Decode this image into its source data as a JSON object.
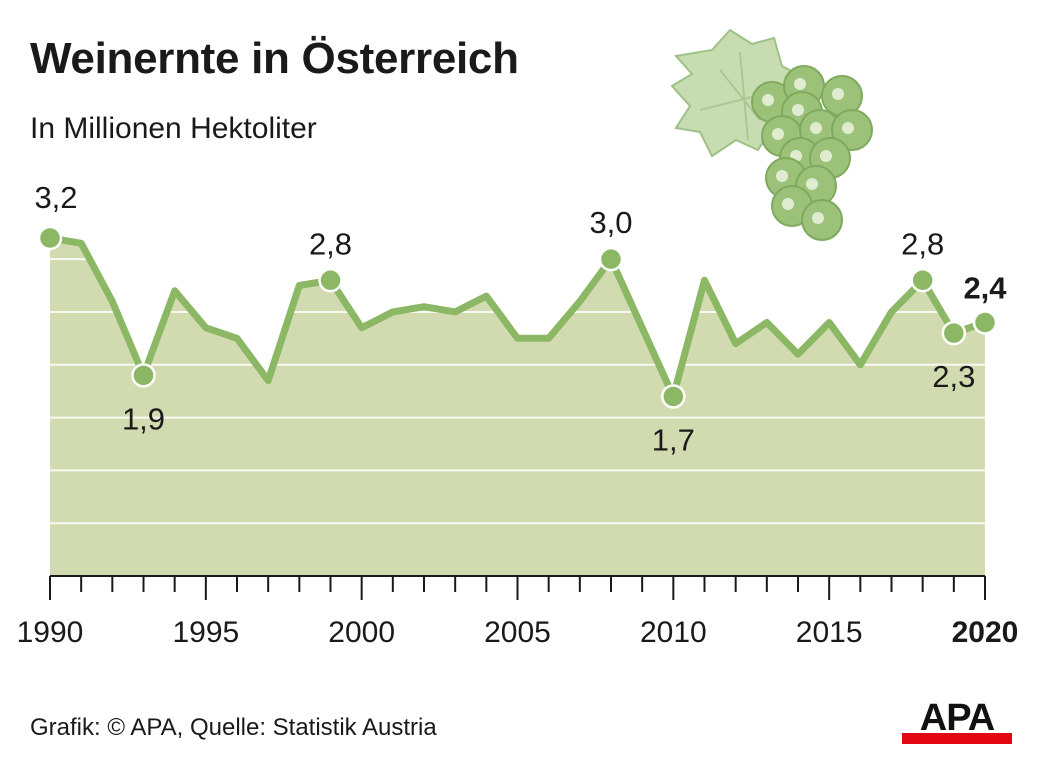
{
  "header": {
    "title": "Weinernte in Österreich",
    "subtitle": "In Millionen Hektoliter"
  },
  "footer": {
    "source": "Grafik: © APA, Quelle: Statistik Austria"
  },
  "logo": {
    "text": "APA"
  },
  "colors": {
    "area": "#d2dbaf",
    "line": "#8cb865",
    "grid": "#ffffff",
    "axis": "#1a1a1a",
    "logo_bar": "#e30613",
    "grape": "#9cc279",
    "leaf": "#c7ddb1"
  },
  "decoration": {
    "icon": "grape-cluster-icon"
  },
  "chart_data": {
    "type": "area",
    "x": [
      1990,
      1991,
      1992,
      1993,
      1994,
      1995,
      1996,
      1997,
      1998,
      1999,
      2000,
      2001,
      2002,
      2003,
      2004,
      2005,
      2006,
      2007,
      2008,
      2009,
      2010,
      2011,
      2012,
      2013,
      2014,
      2015,
      2016,
      2017,
      2018,
      2019,
      2020
    ],
    "values": [
      3.2,
      3.15,
      2.6,
      1.9,
      2.7,
      2.35,
      2.25,
      1.85,
      2.75,
      2.8,
      2.35,
      2.5,
      2.55,
      2.5,
      2.65,
      2.25,
      2.25,
      2.6,
      3.0,
      2.35,
      1.7,
      2.8,
      2.2,
      2.4,
      2.1,
      2.4,
      2.0,
      2.5,
      2.8,
      2.3,
      2.4
    ],
    "ylim": [
      0,
      3.2
    ],
    "xlim": [
      1990,
      2020
    ],
    "xticks": [
      "1990",
      "1995",
      "2000",
      "2005",
      "2010",
      "2015",
      "2020"
    ],
    "grid": true,
    "annotations": [
      {
        "year": 1990,
        "label": "3,2",
        "pos": "above"
      },
      {
        "year": 1993,
        "label": "1,9",
        "pos": "below"
      },
      {
        "year": 1999,
        "label": "2,8",
        "pos": "above"
      },
      {
        "year": 2008,
        "label": "3,0",
        "pos": "above"
      },
      {
        "year": 2010,
        "label": "1,7",
        "pos": "below"
      },
      {
        "year": 2018,
        "label": "2,8",
        "pos": "above"
      },
      {
        "year": 2019,
        "label": "2,3",
        "pos": "below"
      },
      {
        "year": 2020,
        "label": "2,4",
        "pos": "above",
        "bold": true
      }
    ]
  }
}
